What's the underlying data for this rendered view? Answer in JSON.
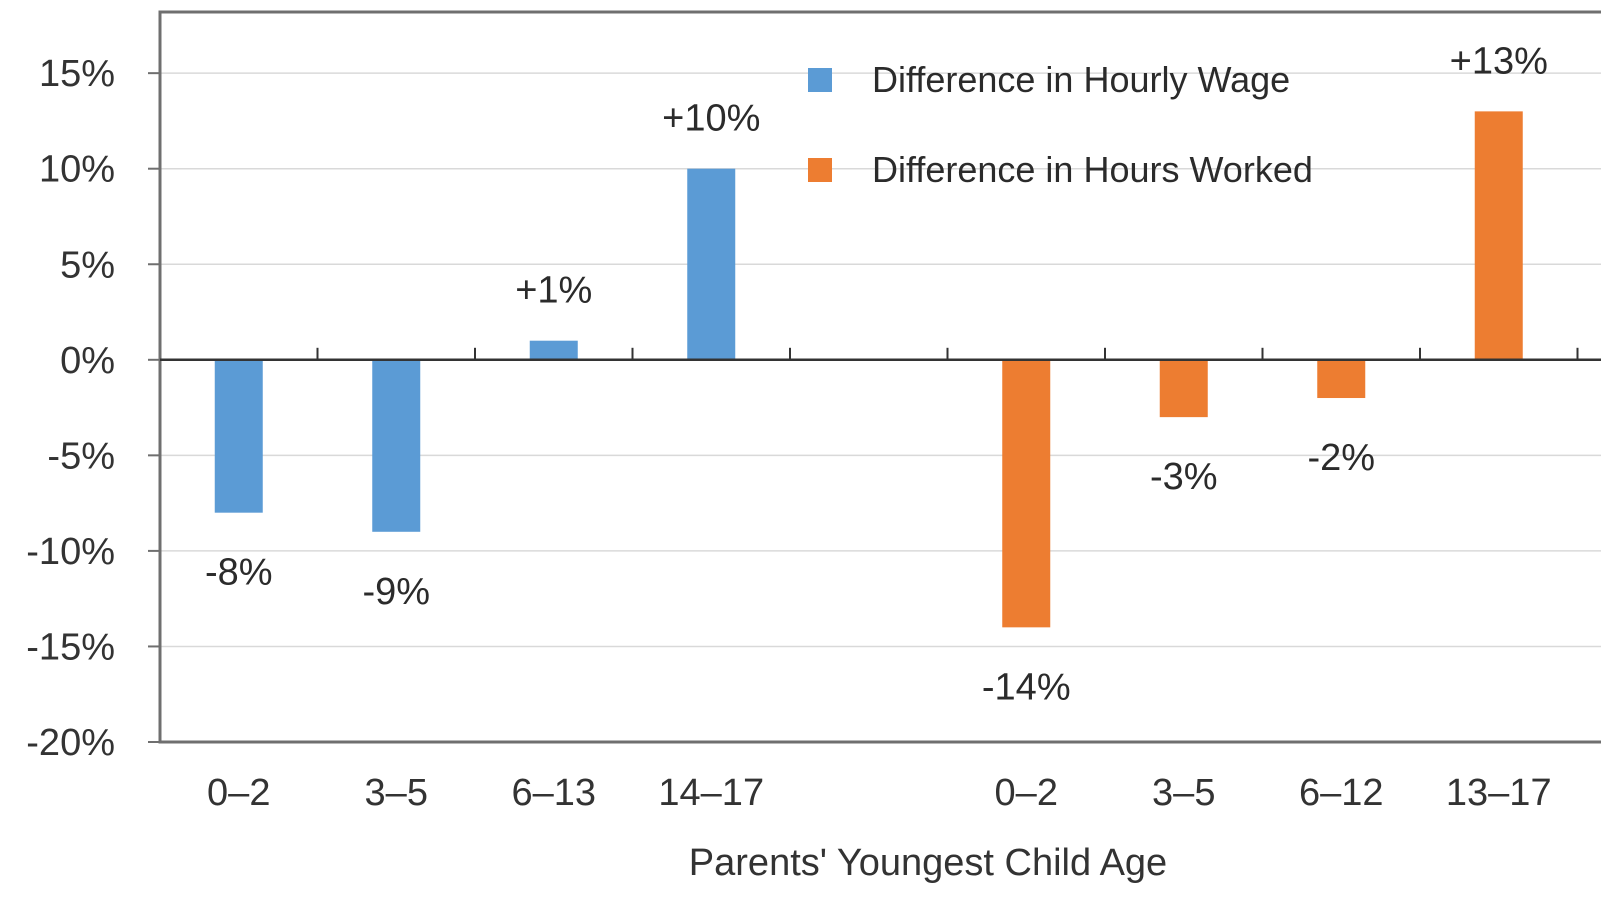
{
  "chart_data": {
    "type": "bar",
    "xlabel": "Parents' Youngest Child Age",
    "ylabel": "",
    "ylim": [
      -20,
      15
    ],
    "yticks": [
      15,
      10,
      5,
      0,
      -5,
      -10,
      -15,
      -20
    ],
    "ytick_labels": [
      "15%",
      "10%",
      "5%",
      "0%",
      "-5%",
      "-10%",
      "-15%",
      "-20%"
    ],
    "grid": "horizontal",
    "legend_position": "top-center",
    "series": [
      {
        "name": "Difference in Hourly Wage",
        "color": "#5b9bd5",
        "categories": [
          "0–2",
          "3–5",
          "6–13",
          "14–17"
        ],
        "values": [
          -8,
          -9,
          1,
          10
        ],
        "labels": [
          "-8%",
          "-9%",
          "+1%",
          "+10%"
        ]
      },
      {
        "name": "Difference in Hours Worked",
        "color": "#ed7d31",
        "categories": [
          "0–2",
          "3–5",
          "6–12",
          "13–17"
        ],
        "values": [
          -14,
          -3,
          -2,
          13
        ],
        "labels": [
          "-14%",
          "-3%",
          "-2%",
          "+13%"
        ]
      }
    ]
  }
}
